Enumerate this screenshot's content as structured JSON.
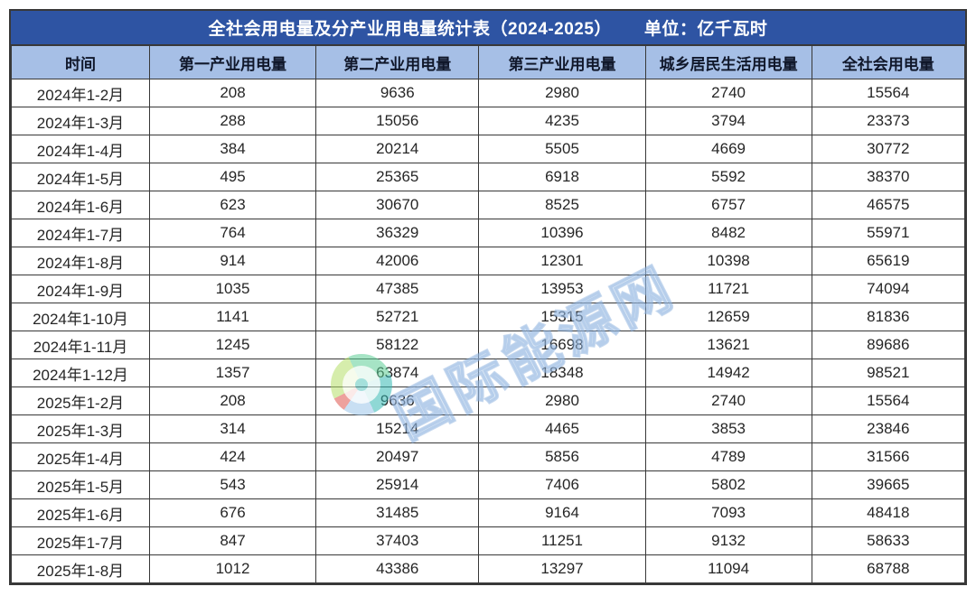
{
  "title": {
    "main": "全社会用电量及分产业用电量统计表（2024-2025）",
    "unit_label": "单位：亿千瓦时"
  },
  "watermark": {
    "text": "国际能源网",
    "logo_icon": "energy-net-logo"
  },
  "colors": {
    "title_bar_bg": "#2e54a3",
    "title_text": "#ffffff",
    "header_bg": "#a6bfe6",
    "header_text": "#10172a",
    "border": "#383838",
    "body_text": "#262626",
    "watermark_blue": "#9cc0e6"
  },
  "chart_data": {
    "type": "table",
    "title": "全社会用电量及分产业用电量统计表（2024-2025）",
    "unit_label": "单位：亿千瓦时",
    "unit": "亿千瓦时",
    "columns": [
      "时间",
      "第一产业用电量",
      "第二产业用电量",
      "第三产业用电量",
      "城乡居民生活用电量",
      "全社会用电量"
    ],
    "rows": [
      [
        "2024年1-2月",
        208,
        9636,
        2980,
        2740,
        15564
      ],
      [
        "2024年1-3月",
        288,
        15056,
        4235,
        3794,
        23373
      ],
      [
        "2024年1-4月",
        384,
        20214,
        5505,
        4669,
        30772
      ],
      [
        "2024年1-5月",
        495,
        25365,
        6918,
        5592,
        38370
      ],
      [
        "2024年1-6月",
        623,
        30670,
        8525,
        6757,
        46575
      ],
      [
        "2024年1-7月",
        764,
        36329,
        10396,
        8482,
        55971
      ],
      [
        "2024年1-8月",
        914,
        42006,
        12301,
        10398,
        65619
      ],
      [
        "2024年1-9月",
        1035,
        47385,
        13953,
        11721,
        74094
      ],
      [
        "2024年1-10月",
        1141,
        52721,
        15315,
        12659,
        81836
      ],
      [
        "2024年1-11月",
        1245,
        58122,
        16698,
        13621,
        89686
      ],
      [
        "2024年1-12月",
        1357,
        63874,
        18348,
        14942,
        98521
      ],
      [
        "2025年1-2月",
        208,
        9636,
        2980,
        2740,
        15564
      ],
      [
        "2025年1-3月",
        314,
        15214,
        4465,
        3853,
        23846
      ],
      [
        "2025年1-4月",
        424,
        20497,
        5856,
        4789,
        31566
      ],
      [
        "2025年1-5月",
        543,
        25914,
        7406,
        5802,
        39665
      ],
      [
        "2025年1-6月",
        676,
        31485,
        9164,
        7093,
        48418
      ],
      [
        "2025年1-7月",
        847,
        37403,
        11251,
        9132,
        58633
      ],
      [
        "2025年1-8月",
        1012,
        43386,
        13297,
        11094,
        68788
      ]
    ],
    "column_widths_pct": [
      14.5,
      17.45,
      17.1,
      17.45,
      17.45,
      16.05
    ],
    "layout": {
      "grid": true,
      "header_position": "top"
    }
  }
}
